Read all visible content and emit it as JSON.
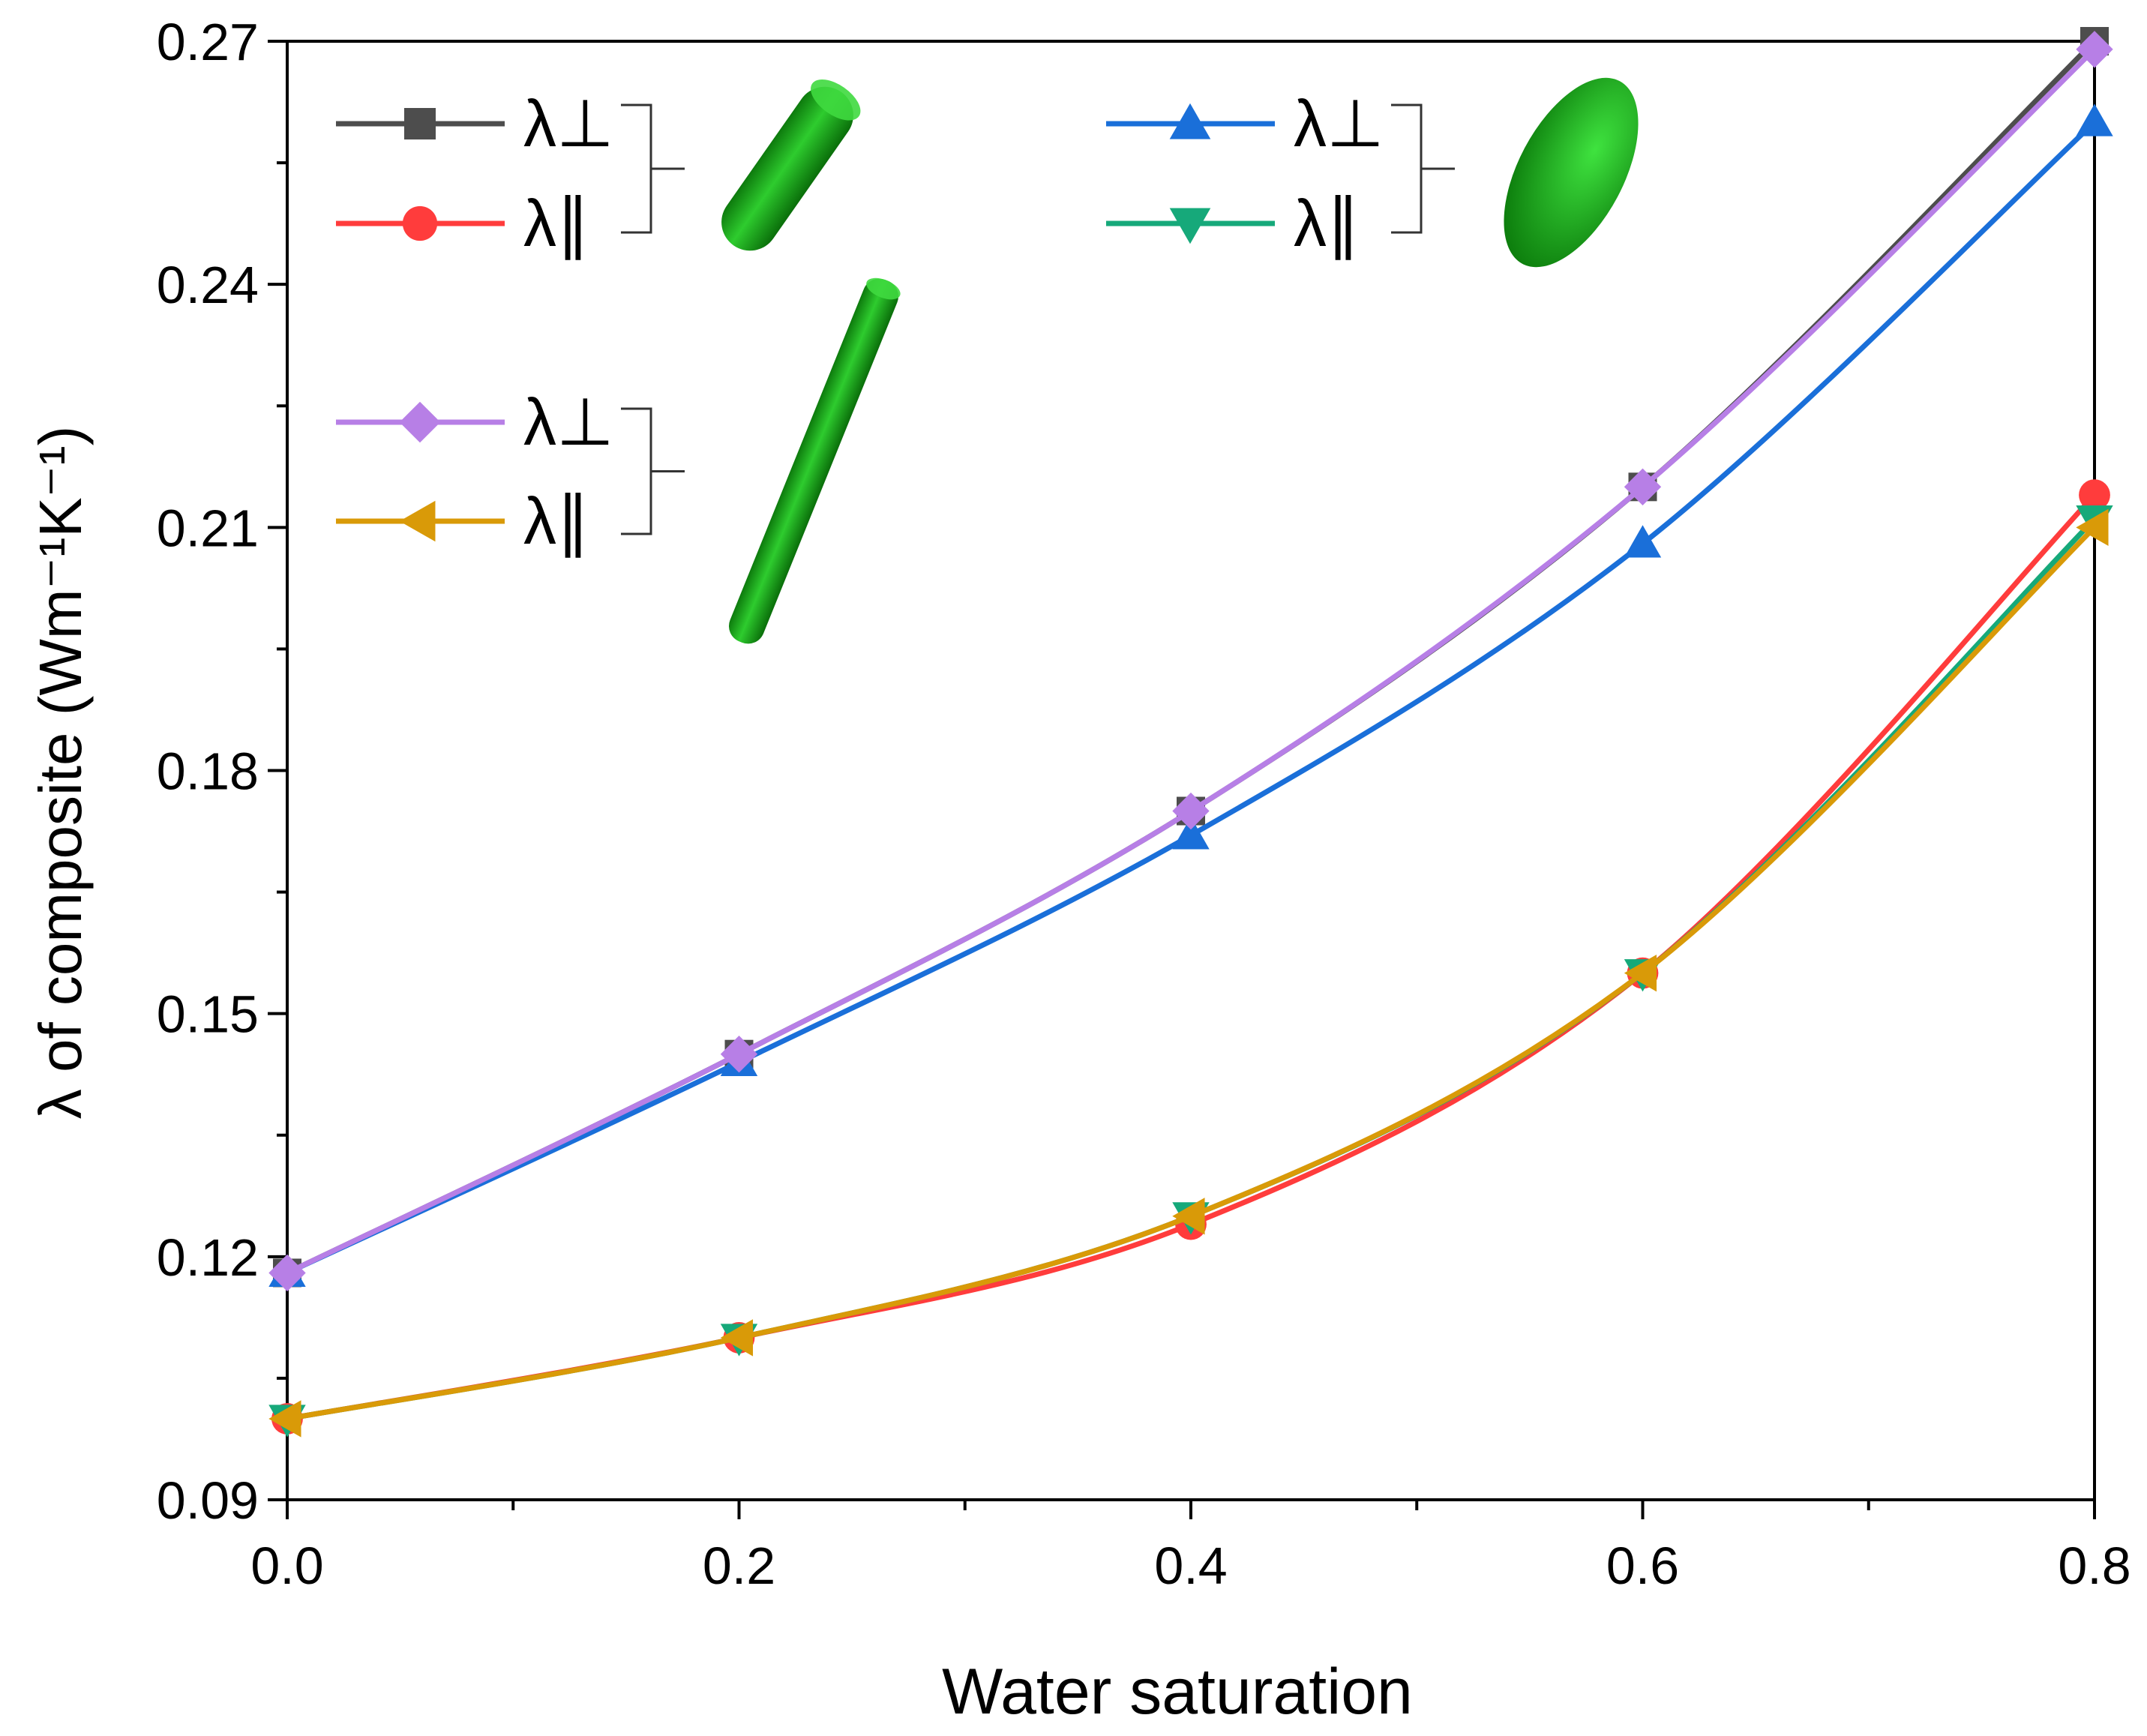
{
  "chart_data": {
    "type": "line",
    "title": "",
    "xlabel": "Water saturation",
    "ylabel": "λ of composite (Wm⁻¹K⁻¹)",
    "xlim": [
      0.0,
      0.8
    ],
    "ylim": [
      0.09,
      0.27
    ],
    "xticks": [
      "0.0",
      "0.2",
      "0.4",
      "0.6",
      "0.8"
    ],
    "yticks": [
      "0.09",
      "0.12",
      "0.15",
      "0.18",
      "0.21",
      "0.24",
      "0.27"
    ],
    "x": [
      0.0,
      0.2,
      0.4,
      0.6,
      0.8
    ],
    "series": [
      {
        "name": "λ⊥",
        "group": "capsule",
        "color": "#4d4d4d",
        "marker": "square",
        "values": [
          0.118,
          0.145,
          0.175,
          0.215,
          0.27
        ]
      },
      {
        "name": "λ∥",
        "group": "capsule",
        "color": "#ff3c3c",
        "marker": "circle",
        "values": [
          0.1,
          0.11,
          0.124,
          0.155,
          0.214
        ]
      },
      {
        "name": "λ⊥",
        "group": "ellipsoid",
        "color": "#1a6fd9",
        "marker": "triangle-up",
        "values": [
          0.118,
          0.144,
          0.172,
          0.208,
          0.26
        ]
      },
      {
        "name": "λ∥",
        "group": "ellipsoid",
        "color": "#16a97a",
        "marker": "triangle-down",
        "values": [
          0.1,
          0.11,
          0.125,
          0.155,
          0.211
        ]
      },
      {
        "name": "λ⊥",
        "group": "long-rod",
        "color": "#b77fe6",
        "marker": "diamond",
        "values": [
          0.118,
          0.145,
          0.175,
          0.215,
          0.269
        ]
      },
      {
        "name": "λ∥",
        "group": "long-rod",
        "color": "#d99a08",
        "marker": "triangle-left",
        "values": [
          0.1,
          0.11,
          0.125,
          0.155,
          0.21
        ]
      }
    ],
    "legend_position": "top-left",
    "grid": false
  }
}
